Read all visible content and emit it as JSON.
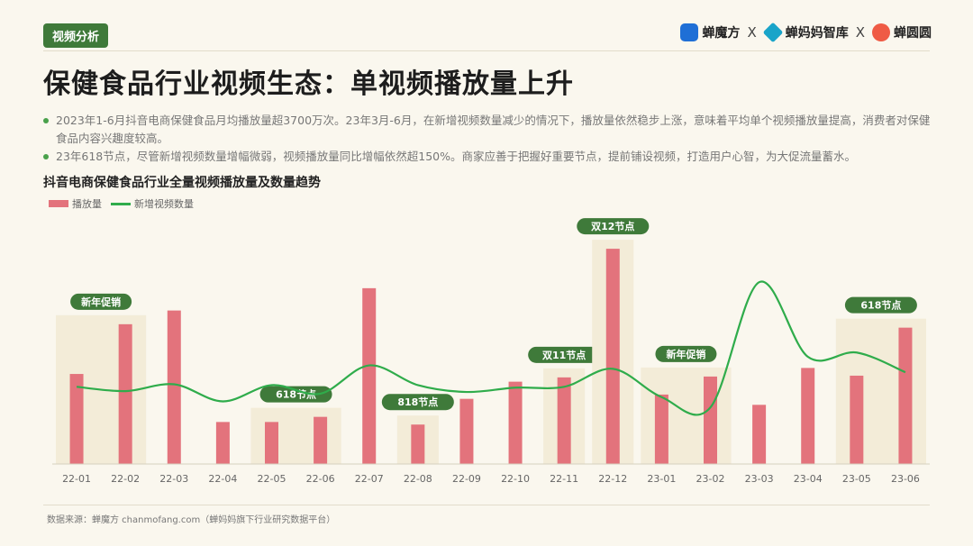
{
  "tag": "视频分析",
  "brands": [
    {
      "name": "蝉魔方",
      "icon": "chanmofang-logo-icon"
    },
    {
      "name": "蝉妈妈智库",
      "icon": "chanmama-logo-icon"
    },
    {
      "name": "蝉圆圆",
      "icon": "chanyuanyuan-logo-icon"
    }
  ],
  "brand_separator": "X",
  "title": "保健食品行业视频生态：单视频播放量上升",
  "bullets": [
    "2023年1-6月抖音电商保健食品月均播放量超3700万次。23年3月-6月，在新增视频数量减少的情况下，播放量依然稳步上涨，意味着平均单个视频播放量提高，消费者对保健食品内容兴趣度较高。",
    "23年618节点，尽管新增视频数量增幅微弱，视频播放量同比增幅依然超150%。商家应善于把握好重要节点，提前铺设视频，打造用户心智，为大促流量蓄水。"
  ],
  "source": "数据来源：蝉魔方 chanmofang.com（蝉妈妈旗下行业研究数据平台）",
  "colors": {
    "bar": "#e3737c",
    "line": "#2fac4b",
    "highlight": "#f3ecd8",
    "badge": "#3f7a3a"
  },
  "chart_data": {
    "type": "bar",
    "title": "抖音电商保健食品行业全量视频播放量及数量趋势",
    "categories": [
      "22-01",
      "22-02",
      "22-03",
      "22-04",
      "22-05",
      "22-06",
      "22-07",
      "22-08",
      "22-09",
      "22-10",
      "22-11",
      "22-12",
      "23-01",
      "23-02",
      "23-03",
      "23-04",
      "23-05",
      "23-06"
    ],
    "series": [
      {
        "name": "播放量",
        "type": "bar",
        "values": [
          105,
          163,
          179,
          49,
          49,
          55,
          205,
          46,
          76,
          96,
          101,
          251,
          81,
          102,
          69,
          112,
          103,
          159
        ]
      },
      {
        "name": "新增视频数量",
        "type": "line",
        "values": [
          90,
          85,
          93,
          73,
          92,
          82,
          115,
          92,
          84,
          89,
          90,
          111,
          78,
          66,
          212,
          125,
          130,
          107
        ]
      }
    ],
    "ylim": [
      0,
      270
    ],
    "line_ylim": [
      0,
      270
    ],
    "axis_values_visible": false,
    "grid": false,
    "legend": "top-left",
    "annotations": [
      {
        "label": "新年促销",
        "start": "22-01",
        "end": "22-02"
      },
      {
        "label": "618节点",
        "start": "22-05",
        "end": "22-06"
      },
      {
        "label": "818节点",
        "start": "22-08",
        "end": "22-08"
      },
      {
        "label": "双11节点",
        "start": "22-11",
        "end": "22-11"
      },
      {
        "label": "双12节点",
        "start": "22-12",
        "end": "22-12"
      },
      {
        "label": "新年促销",
        "start": "23-01",
        "end": "23-02"
      },
      {
        "label": "618节点",
        "start": "23-05",
        "end": "23-06"
      }
    ]
  }
}
